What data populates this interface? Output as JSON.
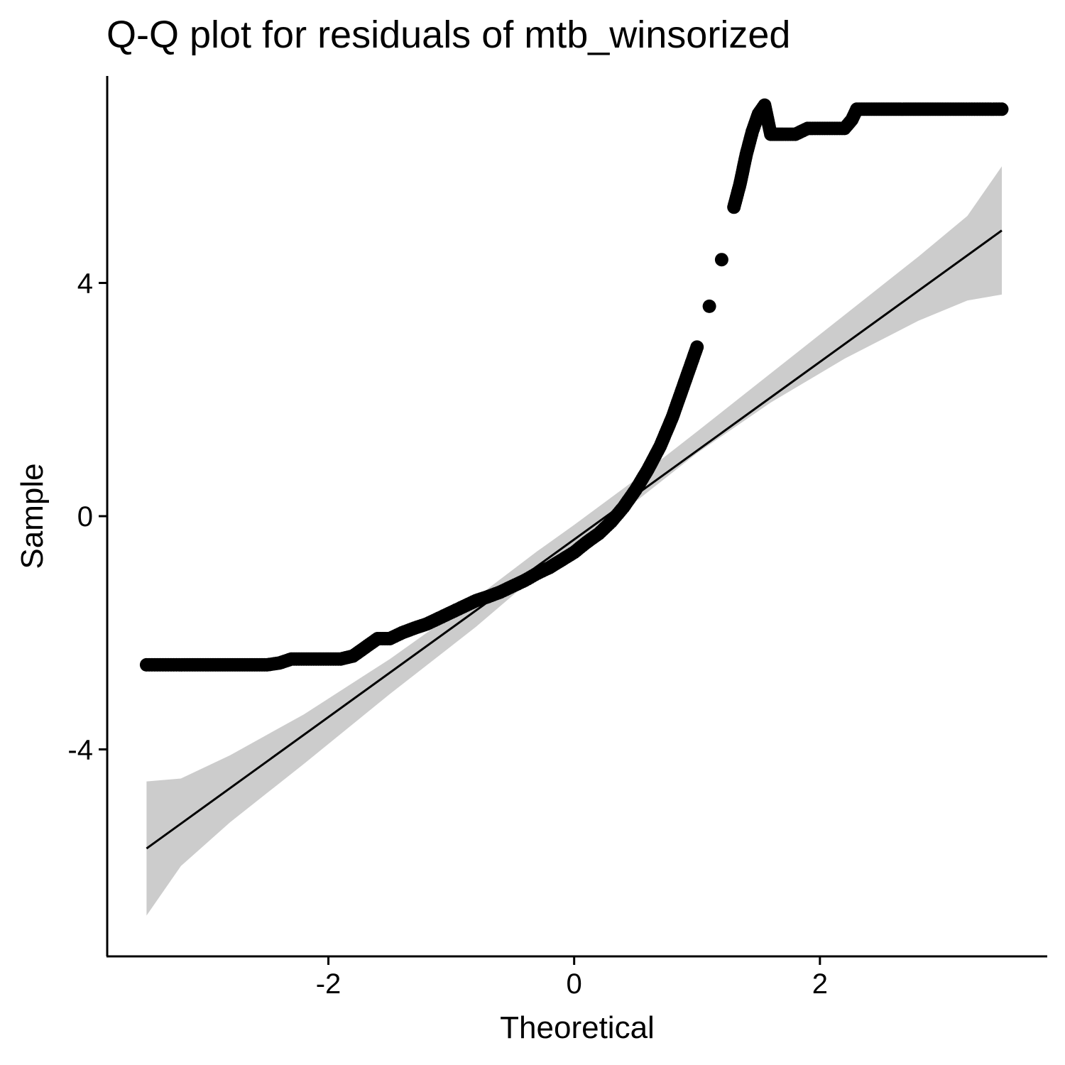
{
  "chart_data": {
    "type": "scatter",
    "title": "Q-Q plot for residuals of mtb_winsorized",
    "xlabel": "Theoretical",
    "ylabel": "Sample",
    "xlim": [
      -3.8,
      3.85
    ],
    "ylim": [
      -7.55,
      7.55
    ],
    "x_ticks": [
      -2,
      0,
      2
    ],
    "x_tick_labels": [
      "-2",
      "0",
      "2"
    ],
    "y_ticks": [
      -4,
      0,
      4
    ],
    "y_tick_labels": [
      "-4",
      "0",
      "4"
    ],
    "grid": false,
    "legend": "none",
    "colors": {
      "points": "#000000",
      "line": "#000000",
      "band": "#cccccc"
    },
    "reference_line": {
      "x": [
        -3.48,
        3.48
      ],
      "y": [
        -5.7,
        4.9
      ]
    },
    "confidence_band": {
      "x": [
        -3.48,
        -3.2,
        -2.8,
        -2.2,
        -1.5,
        -0.8,
        -0.3,
        0.0,
        0.5,
        1.0,
        1.6,
        2.2,
        2.8,
        3.2,
        3.48
      ],
      "upper": [
        -4.55,
        -4.5,
        -4.1,
        -3.4,
        -2.45,
        -1.4,
        -0.6,
        -0.15,
        0.63,
        1.45,
        2.45,
        3.45,
        4.45,
        5.15,
        6.0
      ],
      "lower": [
        -6.85,
        -6.0,
        -5.25,
        -4.25,
        -3.05,
        -1.9,
        -1.0,
        -0.5,
        0.25,
        1.08,
        1.95,
        2.7,
        3.35,
        3.7,
        3.8
      ]
    },
    "series": [
      {
        "x": [
          -3.48,
          -3.17,
          -3.0,
          -2.9,
          -2.8,
          -2.7,
          -2.6,
          -2.5,
          -2.4,
          -2.3,
          -2.2,
          -2.1,
          -2.0,
          -1.9,
          -1.8,
          -1.7,
          -1.6,
          -1.5,
          -1.4,
          -1.3,
          -1.2,
          -1.1,
          -1.0,
          -0.9,
          -0.8,
          -0.7,
          -0.6,
          -0.5,
          -0.4,
          -0.3,
          -0.2,
          -0.1,
          0.0,
          0.1,
          0.2,
          0.3,
          0.4,
          0.5,
          0.6,
          0.7,
          0.8,
          0.9,
          1.0,
          1.1,
          1.2,
          1.3,
          1.35,
          1.4,
          1.45,
          1.5,
          1.55,
          1.6,
          1.65,
          1.7,
          1.8,
          1.9,
          2.0,
          2.1,
          2.2,
          2.26,
          2.3,
          2.4,
          2.5,
          2.6,
          2.7,
          2.8,
          2.9,
          3.0,
          3.17,
          3.48
        ],
        "y": [
          -2.55,
          -2.55,
          -2.55,
          -2.55,
          -2.55,
          -2.55,
          -2.55,
          -2.55,
          -2.52,
          -2.45,
          -2.45,
          -2.45,
          -2.45,
          -2.45,
          -2.4,
          -2.25,
          -2.1,
          -2.1,
          -2.0,
          -1.92,
          -1.85,
          -1.75,
          -1.65,
          -1.55,
          -1.45,
          -1.38,
          -1.3,
          -1.2,
          -1.1,
          -0.98,
          -0.88,
          -0.75,
          -0.62,
          -0.45,
          -0.3,
          -0.1,
          0.15,
          0.45,
          0.8,
          1.2,
          1.7,
          2.3,
          2.9,
          3.6,
          4.4,
          5.3,
          5.7,
          6.2,
          6.6,
          6.9,
          7.05,
          6.55,
          6.55,
          6.55,
          6.55,
          6.65,
          6.65,
          6.65,
          6.65,
          6.8,
          6.98,
          6.98,
          6.98,
          6.98,
          6.98,
          6.98,
          6.98,
          6.98,
          6.98,
          6.98
        ]
      }
    ]
  }
}
